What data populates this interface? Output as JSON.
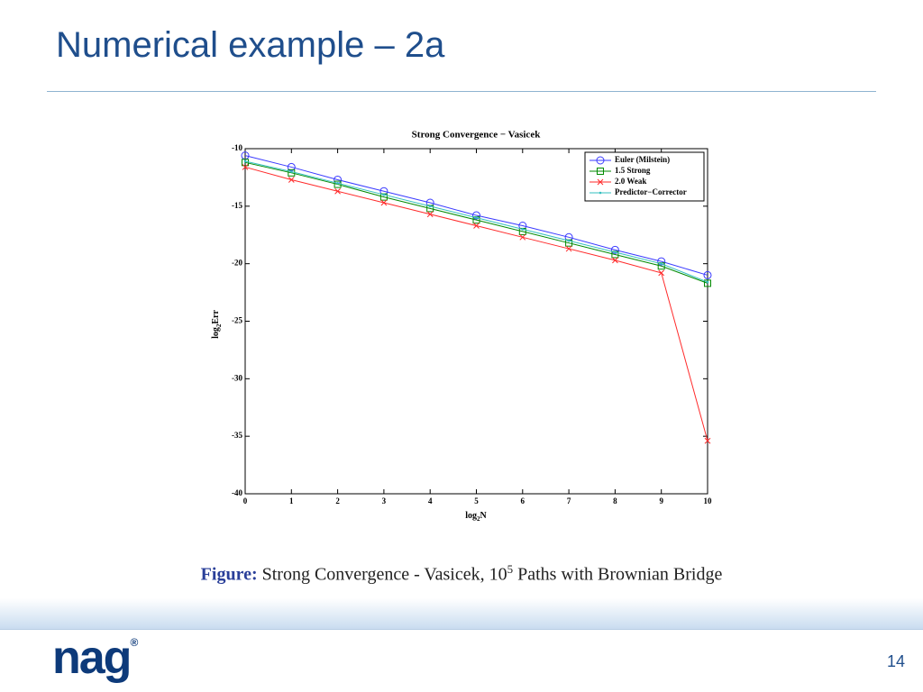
{
  "slide": {
    "title": "Numerical example – 2a",
    "caption": {
      "label": "Figure:",
      "text": "Strong Convergence - Vasicek, 10",
      "sup": "5",
      "rest": " Paths with Brownian Bridge"
    },
    "logo": {
      "text": "nag",
      "mark": "®"
    },
    "page_number": "14"
  },
  "chart_data": {
    "type": "line",
    "title": "Strong Convergence − Vasicek",
    "xlabel": {
      "base": "log",
      "sub": "2",
      "rest": "N"
    },
    "ylabel": {
      "base": "log",
      "sub": "2",
      "rest": "Err"
    },
    "x": [
      0,
      1,
      2,
      3,
      4,
      5,
      6,
      7,
      8,
      9,
      10
    ],
    "series": [
      {
        "name": "Euler (Milstein)",
        "color": "#3a3aff",
        "marker": "circle",
        "values": [
          -10.6,
          -11.6,
          -12.7,
          -13.7,
          -14.7,
          -15.8,
          -16.7,
          -17.7,
          -18.8,
          -19.8,
          -21.0
        ]
      },
      {
        "name": "1.5 Strong",
        "color": "#008a00",
        "marker": "square",
        "values": [
          -11.2,
          -12.1,
          -13.1,
          -14.2,
          -15.2,
          -16.2,
          -17.2,
          -18.2,
          -19.2,
          -20.2,
          -21.7
        ]
      },
      {
        "name": "2.0 Weak",
        "color": "#ff2a2a",
        "marker": "x",
        "values": [
          -11.6,
          -12.7,
          -13.7,
          -14.7,
          -15.7,
          -16.7,
          -17.7,
          -18.7,
          -19.7,
          -20.8,
          -35.4
        ]
      },
      {
        "name": "Predictor−Corrector",
        "color": "#33bfbf",
        "marker": "dot",
        "values": [
          -11.1,
          -12.0,
          -13.0,
          -14.0,
          -15.0,
          -16.0,
          -17.0,
          -18.0,
          -19.0,
          -20.0,
          -21.6
        ]
      }
    ],
    "xlim": [
      0,
      10
    ],
    "xticks": [
      0,
      1,
      2,
      3,
      4,
      5,
      6,
      7,
      8,
      9,
      10
    ],
    "ylim": [
      -40,
      -10
    ],
    "yticks": [
      -10,
      -15,
      -20,
      -25,
      -30,
      -35,
      -40
    ],
    "grid": false,
    "legend": "upper right"
  }
}
